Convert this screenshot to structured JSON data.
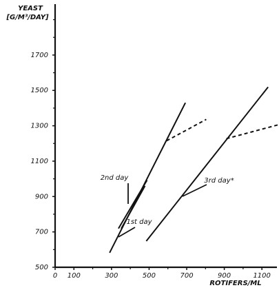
{
  "chart_data": {
    "type": "line",
    "y_label_top": "YEAST",
    "y_label_unit": "[G/M³/DAY]",
    "x_label": "ROTIFERS/ML",
    "xlim": [
      0,
      1180
    ],
    "ylim": [
      500,
      1980
    ],
    "xticks": [
      0,
      100,
      300,
      500,
      700,
      900,
      1100
    ],
    "xminor": [
      200,
      400,
      600,
      800,
      1000
    ],
    "yticks": [
      500,
      700,
      900,
      1100,
      1300,
      1500,
      1700
    ],
    "yminor": [
      600,
      800,
      1000,
      1200,
      1400,
      1600,
      1800,
      1900
    ],
    "color": "#111",
    "series": [
      {
        "x": [
          290,
          693
        ],
        "values": [
          582,
          1430
        ],
        "dashed": false
      },
      {
        "x": [
          593,
          804
        ],
        "values": [
          1215,
          1336
        ],
        "dashed": true
      },
      {
        "x": [
          337,
          489
        ],
        "values": [
          719,
          992
        ],
        "dashed": false
      },
      {
        "x": [
          352,
          478
        ],
        "values": [
          719,
          960
        ],
        "dashed": false
      },
      {
        "x": [
          485,
          1133
        ],
        "values": [
          648,
          1519
        ],
        "dashed": false
      },
      {
        "x": [
          911,
          1185
        ],
        "values": [
          1227,
          1305
        ],
        "dashed": true
      }
    ],
    "annotations": [
      "2nd day",
      "1st day",
      "3rd day*"
    ]
  }
}
